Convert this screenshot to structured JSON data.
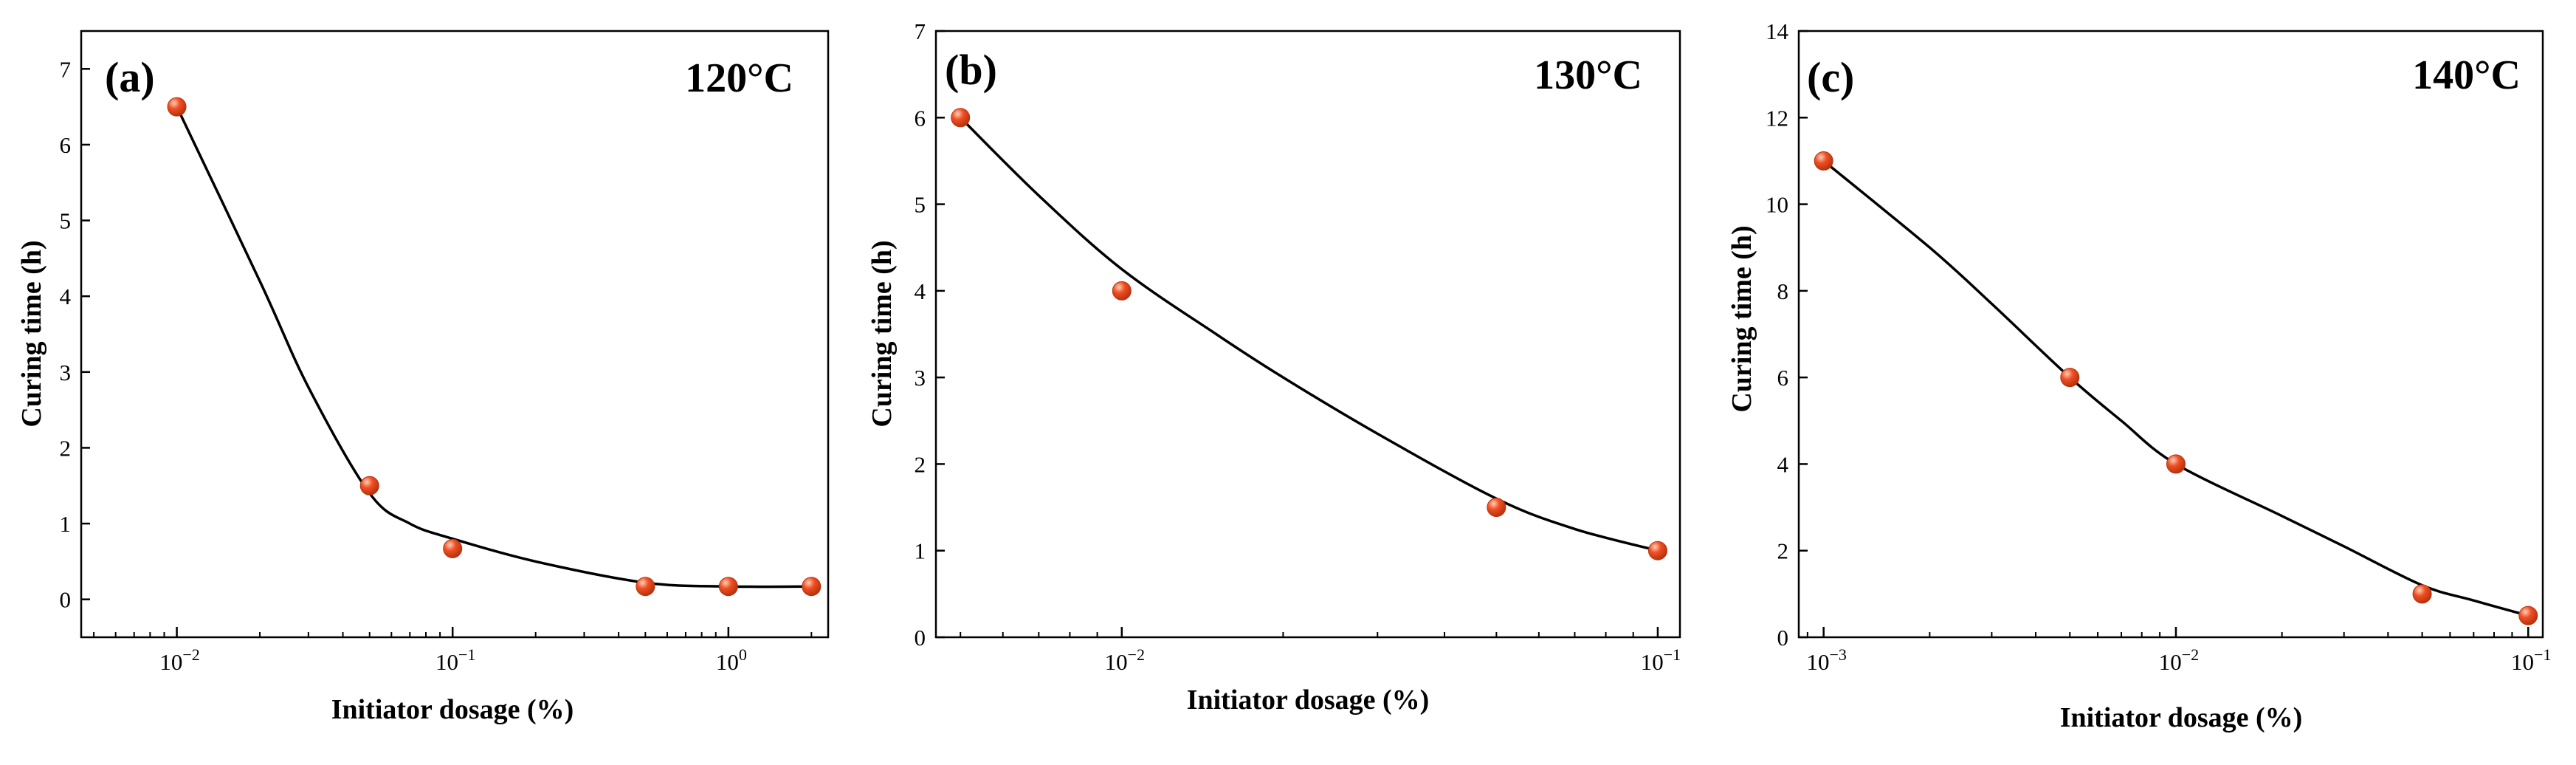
{
  "colors": {
    "marker": "#ef4f23",
    "marker_highlight": "#ffd0b8",
    "marker_edge": "#b8330f",
    "curve": "#000000",
    "axis": "#000000"
  },
  "chart_data": [
    {
      "type": "scatter",
      "panel_label": "(a)",
      "title": "120°C",
      "xlabel": "Initiator dosage (%)",
      "ylabel": "Curing time (h)",
      "xscale": "log",
      "xlim": [
        0.0045,
        2.3
      ],
      "ylim": [
        -0.5,
        7.5
      ],
      "xticks": [
        {
          "value": 0.01,
          "base": "10",
          "exp": "−2"
        },
        {
          "value": 0.1,
          "base": "10",
          "exp": "−1"
        },
        {
          "value": 1,
          "base": "10",
          "exp": "0"
        }
      ],
      "yticks": [
        0,
        1,
        2,
        3,
        4,
        5,
        6,
        7
      ],
      "series": [
        {
          "name": "data",
          "x": [
            0.01,
            0.05,
            0.1,
            0.5,
            1,
            2
          ],
          "y": [
            6.5,
            1.5,
            0.67,
            0.17,
            0.17,
            0.17
          ]
        },
        {
          "name": "fit",
          "x": [
            0.01,
            0.02,
            0.03,
            0.05,
            0.07,
            0.1,
            0.2,
            0.5,
            1,
            2
          ],
          "y": [
            6.5,
            4.2,
            2.8,
            1.4,
            1.0,
            0.8,
            0.5,
            0.22,
            0.17,
            0.17
          ]
        }
      ],
      "legend": "none"
    },
    {
      "type": "scatter",
      "panel_label": "(b)",
      "title": "130°C",
      "xlabel": "Initiator dosage (%)",
      "ylabel": "Curing time (h)",
      "xscale": "log",
      "xlim": [
        0.0045,
        0.11
      ],
      "ylim": [
        0,
        7
      ],
      "xticks": [
        {
          "value": 0.01,
          "base": "10",
          "exp": "−2"
        },
        {
          "value": 0.1,
          "base": "10",
          "exp": "−1"
        }
      ],
      "yticks": [
        0,
        1,
        2,
        3,
        4,
        5,
        6,
        7
      ],
      "series": [
        {
          "name": "data",
          "x": [
            0.005,
            0.01,
            0.05,
            0.1
          ],
          "y": [
            6,
            4,
            1.5,
            1
          ]
        },
        {
          "name": "fit",
          "x": [
            0.005,
            0.007,
            0.01,
            0.015,
            0.02,
            0.03,
            0.05,
            0.07,
            0.1
          ],
          "y": [
            6,
            5.1,
            4.25,
            3.5,
            3.0,
            2.35,
            1.6,
            1.25,
            1.0
          ]
        }
      ],
      "legend": "none"
    },
    {
      "type": "scatter",
      "panel_label": "(c)",
      "title": "140°C",
      "xlabel": "Initiator dosage (%)",
      "ylabel": "Curing time (h)",
      "xscale": "log",
      "xlim": [
        0.00085,
        0.11
      ],
      "ylim": [
        0,
        14
      ],
      "xticks": [
        {
          "value": 0.001,
          "base": "10",
          "exp": "−3"
        },
        {
          "value": 0.01,
          "base": "10",
          "exp": "−2"
        },
        {
          "value": 0.1,
          "base": "10",
          "exp": "−1"
        }
      ],
      "yticks": [
        0,
        2,
        4,
        6,
        8,
        10,
        12,
        14
      ],
      "series": [
        {
          "name": "data",
          "x": [
            0.001,
            0.005,
            0.01,
            0.05,
            0.1
          ],
          "y": [
            11,
            6,
            4,
            1,
            0.5
          ]
        },
        {
          "name": "fit",
          "x": [
            0.001,
            0.002,
            0.003,
            0.005,
            0.007,
            0.01,
            0.02,
            0.03,
            0.05,
            0.07,
            0.1
          ],
          "y": [
            11,
            9.0,
            7.7,
            6.0,
            5.0,
            4.0,
            2.8,
            2.1,
            1.2,
            0.85,
            0.5
          ]
        }
      ],
      "legend": "none"
    }
  ]
}
